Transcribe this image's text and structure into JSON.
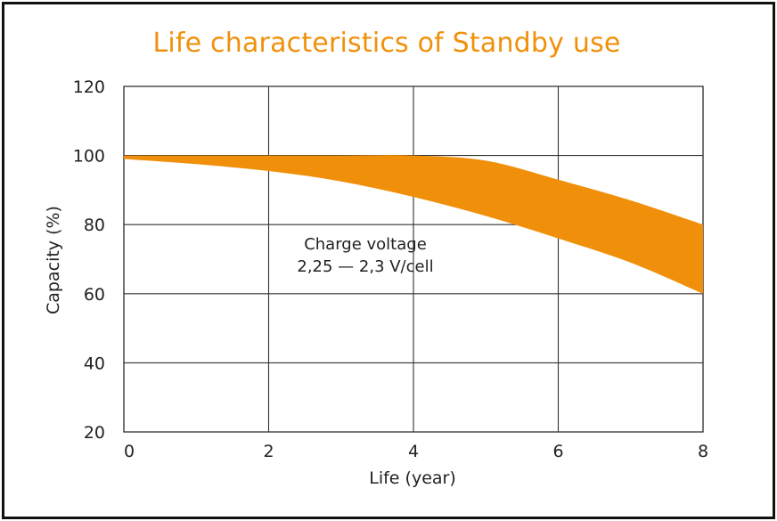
{
  "chart_data": {
    "type": "area",
    "title": "Life characteristics of Standby use",
    "xlabel": "Life (year)",
    "ylabel": "Capacity (%)",
    "xlim": [
      0,
      8
    ],
    "ylim": [
      20,
      120
    ],
    "x_ticks": [
      "0",
      "2",
      "4",
      "6",
      "8"
    ],
    "y_ticks": [
      "120",
      "100",
      "80",
      "60",
      "40",
      "20"
    ],
    "grid": true,
    "band_color": "#f0900a",
    "series": [
      {
        "x": [
          0,
          1,
          2,
          3,
          4,
          5,
          6,
          7,
          8
        ],
        "upper": [
          100,
          100,
          100,
          100,
          100,
          98.5,
          93,
          87,
          80
        ],
        "lower": [
          99,
          97.5,
          95.5,
          92.5,
          88,
          82.5,
          76,
          69,
          60
        ]
      }
    ],
    "annotations": [
      "Charge voltage",
      "2,25 — 2,3 V/cell"
    ]
  }
}
